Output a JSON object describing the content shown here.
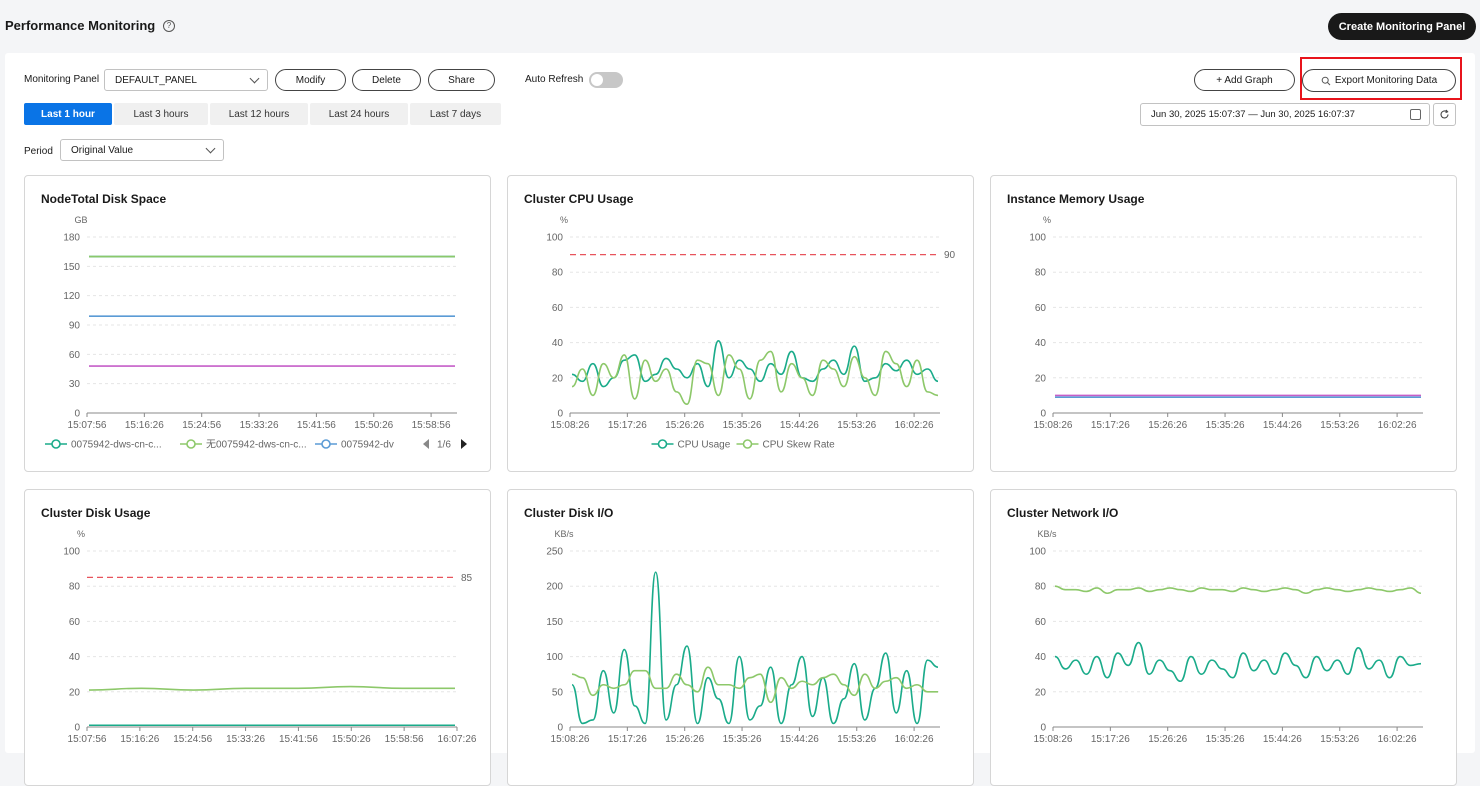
{
  "header": {
    "title": "Performance Monitoring",
    "create_label": "Create Monitoring Panel"
  },
  "toolbar": {
    "panel_label": "Monitoring Panel",
    "panel_value": "DEFAULT_PANEL",
    "modify_label": "Modify",
    "delete_label": "Delete",
    "share_label": "Share",
    "auto_refresh_label": "Auto Refresh",
    "auto_refresh_on": false,
    "add_graph_label": "+ Add Graph",
    "export_label": "Export Monitoring Data",
    "period_label": "Period",
    "period_value": "Original Value",
    "date_range": "Jun 30, 2025 15:07:37 — Jun 30, 2025 16:07:37"
  },
  "tabs": [
    {
      "label": "Last 1 hour",
      "active": true
    },
    {
      "label": "Last 3 hours",
      "active": false
    },
    {
      "label": "Last 12 hours",
      "active": false
    },
    {
      "label": "Last 24 hours",
      "active": false
    },
    {
      "label": "Last 7 days",
      "active": false
    }
  ],
  "colors": {
    "teal": "#1aab8a",
    "lightgreen": "#8dc86a",
    "blue": "#5b9bd5",
    "magenta": "#c55ec8",
    "threshold": "#e8545c",
    "accent": "#0a74e6"
  },
  "chart_data": [
    {
      "type": "line",
      "title": "NodeTotal Disk Space",
      "ylabel": "GB",
      "ylim": [
        0,
        180
      ],
      "yticks": [
        "0",
        "30",
        "60",
        "90",
        "120",
        "150",
        "180"
      ],
      "xticks": [
        "15:07:56",
        "15:16:26",
        "15:24:56",
        "15:33:26",
        "15:41:56",
        "15:50:26",
        "15:58:56"
      ],
      "series": [
        {
          "name": "0075942-dws-cn-c...",
          "color": "#1aab8a",
          "values": [
            160,
            160,
            160,
            160,
            160,
            160,
            160
          ]
        },
        {
          "name": "无0075942-dws-cn-c...",
          "color": "#8dc86a",
          "values": [
            160,
            160,
            160,
            160,
            160,
            160,
            160
          ]
        },
        {
          "name": "0075942-dv",
          "color": "#5b9bd5",
          "values": [
            99,
            99,
            99,
            99,
            99,
            99,
            99
          ]
        },
        {
          "color": "#c55ec8",
          "values": [
            48,
            48,
            48,
            48,
            48,
            48,
            48
          ]
        }
      ],
      "legend_page": "1/6"
    },
    {
      "type": "line",
      "title": "Cluster CPU Usage",
      "ylabel": "%",
      "ylim": [
        0,
        100
      ],
      "yticks": [
        "0",
        "20",
        "40",
        "60",
        "80",
        "100"
      ],
      "xticks": [
        "15:08:26",
        "15:17:26",
        "15:26:26",
        "15:35:26",
        "15:44:26",
        "15:53:26",
        "16:02:26"
      ],
      "threshold": 90,
      "threshold_label": "90",
      "series": [
        {
          "name": "CPU Usage",
          "color": "#1aab8a",
          "values": [
            22,
            18,
            28,
            15,
            20,
            30,
            33,
            18,
            22,
            31,
            25,
            20,
            28,
            15,
            41,
            20,
            30,
            25,
            18,
            28,
            22,
            35,
            20,
            18,
            25,
            30,
            22,
            38,
            18,
            20,
            28,
            24,
            30,
            22,
            25,
            18
          ]
        },
        {
          "name": "CPU Skew Rate",
          "color": "#8dc86a",
          "values": [
            15,
            25,
            10,
            28,
            20,
            33,
            8,
            30,
            18,
            25,
            12,
            5,
            30,
            28,
            10,
            33,
            25,
            8,
            30,
            35,
            12,
            28,
            20,
            10,
            30,
            25,
            15,
            32,
            20,
            10,
            35,
            28,
            15,
            30,
            12,
            10
          ]
        }
      ]
    },
    {
      "type": "line",
      "title": "Instance Memory Usage",
      "ylabel": "%",
      "ylim": [
        0,
        100
      ],
      "yticks": [
        "0",
        "20",
        "40",
        "60",
        "80",
        "100"
      ],
      "xticks": [
        "15:08:26",
        "15:17:26",
        "15:26:26",
        "15:35:26",
        "15:44:26",
        "15:53:26",
        "16:02:26"
      ],
      "series": [
        {
          "color": "#c55ec8",
          "values": [
            10,
            10,
            10,
            10,
            10,
            10,
            10
          ]
        },
        {
          "color": "#5b9bd5",
          "values": [
            9,
            9,
            9,
            9,
            9,
            9,
            9
          ]
        }
      ]
    },
    {
      "type": "line",
      "title": "Cluster Disk Usage",
      "ylabel": "%",
      "ylim": [
        0,
        100
      ],
      "yticks": [
        "0",
        "20",
        "40",
        "60",
        "80",
        "100"
      ],
      "xticks": [
        "15:07:56",
        "15:16:26",
        "15:24:56",
        "15:33:26",
        "15:41:56",
        "15:50:26",
        "15:58:56",
        "16:07:26"
      ],
      "threshold": 85,
      "threshold_label": "85",
      "series": [
        {
          "color": "#8dc86a",
          "values": [
            21,
            22,
            21,
            22,
            22,
            23,
            22,
            22
          ]
        },
        {
          "color": "#1aab8a",
          "values": [
            1,
            1,
            1,
            1,
            1,
            1,
            1,
            1
          ]
        }
      ]
    },
    {
      "type": "line",
      "title": "Cluster Disk I/O",
      "ylabel": "KB/s",
      "ylim": [
        0,
        250
      ],
      "yticks": [
        "0",
        "50",
        "100",
        "150",
        "200",
        "250"
      ],
      "xticks": [
        "15:08:26",
        "15:17:26",
        "15:26:26",
        "15:35:26",
        "15:44:26",
        "15:53:26",
        "16:02:26"
      ],
      "series": [
        {
          "color": "#1aab8a",
          "values": [
            60,
            5,
            10,
            80,
            20,
            110,
            30,
            5,
            220,
            10,
            60,
            115,
            5,
            70,
            40,
            5,
            100,
            10,
            30,
            85,
            5,
            60,
            100,
            15,
            70,
            5,
            40,
            90,
            10,
            55,
            105,
            20,
            80,
            5,
            95,
            85
          ]
        },
        {
          "color": "#8dc86a",
          "values": [
            75,
            70,
            45,
            60,
            55,
            60,
            80,
            80,
            55,
            55,
            75,
            60,
            50,
            85,
            60,
            60,
            55,
            70,
            75,
            35,
            70,
            55,
            65,
            60,
            70,
            75,
            60,
            45,
            75,
            55,
            65,
            70,
            55,
            60,
            50,
            50
          ]
        }
      ]
    },
    {
      "type": "line",
      "title": "Cluster Network I/O",
      "ylabel": "KB/s",
      "ylim": [
        0,
        100
      ],
      "yticks": [
        "0",
        "20",
        "40",
        "60",
        "80",
        "100"
      ],
      "xticks": [
        "15:08:26",
        "15:17:26",
        "15:26:26",
        "15:35:26",
        "15:44:26",
        "15:53:26",
        "16:02:26"
      ],
      "series": [
        {
          "color": "#8dc86a",
          "values": [
            80,
            78,
            78,
            77,
            79,
            76,
            78,
            78,
            79,
            77,
            78,
            79,
            78,
            77,
            79,
            78,
            78,
            77,
            79,
            78,
            77,
            78,
            79,
            78,
            76,
            78,
            79,
            78,
            77,
            78,
            79,
            78,
            77,
            78,
            79,
            76
          ]
        },
        {
          "color": "#1aab8a",
          "values": [
            40,
            33,
            38,
            30,
            40,
            28,
            42,
            35,
            48,
            30,
            38,
            32,
            26,
            40,
            30,
            38,
            33,
            28,
            42,
            32,
            38,
            30,
            42,
            35,
            28,
            40,
            32,
            38,
            30,
            45,
            33,
            38,
            28,
            40,
            35,
            36
          ]
        }
      ]
    }
  ]
}
